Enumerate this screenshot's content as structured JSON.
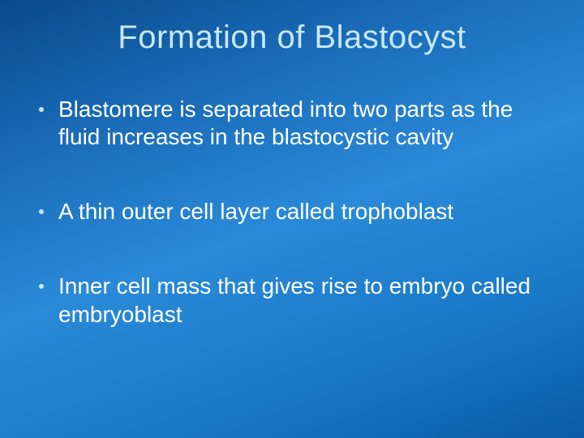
{
  "slide": {
    "title": "Formation of Blastocyst",
    "title_color": "#c8e8f8",
    "title_fontsize": 40,
    "background_gradient": [
      "#0a4a8a",
      "#1a6bb8",
      "#2a8ad8",
      "#1a7ac8",
      "#0a5aa8"
    ],
    "bullets": [
      {
        "text": "Blastomere is separated into two parts as the fluid increases in the blastocystic cavity"
      },
      {
        "text": "A thin outer cell layer called trophoblast"
      },
      {
        "text": "Inner cell mass that gives rise to embryo called embryoblast"
      }
    ],
    "bullet_color": "#ffffff",
    "bullet_fontsize": 28,
    "bullet_dot_color": "#c8e8f8"
  }
}
